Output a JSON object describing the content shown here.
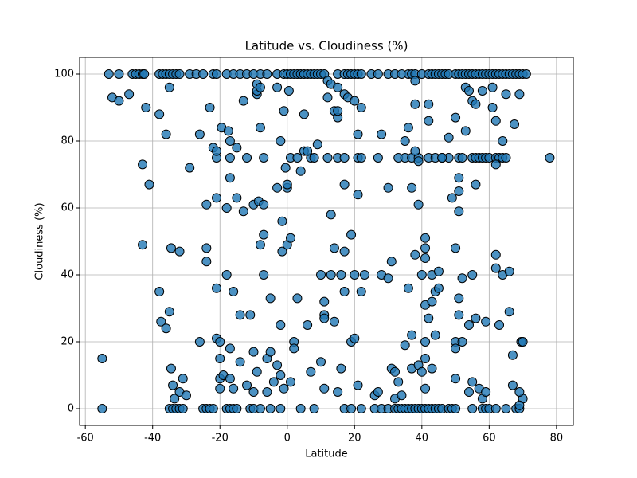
{
  "chart_data": {
    "type": "scatter",
    "title": "Latitude vs. Cloudiness (%)",
    "x_label": "Latitude",
    "y_label": "Cloudiness (%)",
    "color": "#1f77b4",
    "edge_color": "#000000",
    "grid": true,
    "xlim": [
      -61.7,
      85
    ],
    "ylim": [
      -5,
      105
    ],
    "xticks": [
      -60,
      -40,
      -20,
      0,
      20,
      40,
      60,
      80
    ],
    "yticks": [
      0,
      20,
      40,
      60,
      80,
      100
    ],
    "x": [
      -53,
      -50,
      -46,
      -45,
      -44,
      -43,
      -42.5,
      -38,
      -37,
      -36,
      -35,
      -34,
      -33,
      -32,
      -29,
      -27,
      -25,
      -22,
      -21,
      -18,
      -16,
      -14,
      -12,
      -10,
      -8,
      -6,
      -3,
      -1,
      0,
      1,
      2,
      3,
      4,
      5,
      6,
      7,
      8,
      9,
      10,
      11,
      15,
      17,
      18,
      19,
      20,
      21,
      22,
      25,
      27,
      30,
      32,
      34,
      36,
      37,
      38,
      40,
      42,
      43,
      44,
      45,
      46,
      47,
      48,
      50,
      51,
      52,
      53,
      54,
      55,
      56,
      57,
      58,
      59,
      60,
      61,
      62,
      63,
      64,
      65,
      66,
      67,
      68,
      69,
      70,
      71,
      -55,
      -35,
      -34,
      -33,
      -32,
      -31,
      -25,
      -24,
      -23,
      -22,
      -18,
      -17,
      -16,
      -15,
      -11,
      -10,
      -8,
      -5,
      -2,
      4,
      8,
      17,
      19,
      22,
      26,
      28,
      30,
      32,
      33,
      34,
      35,
      36,
      37,
      38,
      39,
      40,
      41,
      42,
      43,
      44,
      45,
      46,
      48,
      49,
      50,
      55,
      58,
      59,
      60,
      62,
      65,
      68,
      69,
      -21,
      -17,
      -12,
      -7,
      1,
      3,
      7,
      12,
      15,
      17,
      21,
      22,
      27,
      33,
      35,
      37,
      39,
      42,
      44,
      46,
      48,
      51,
      52,
      55,
      56,
      57,
      58,
      59,
      60,
      62,
      63,
      64,
      65,
      78,
      -55,
      -52,
      -50,
      -47,
      -43,
      -43,
      -42,
      -41,
      -38,
      -38,
      -37.5,
      -36,
      -36,
      -35,
      -35,
      -34.5,
      -34.5,
      -34,
      -33.5,
      -32,
      -32,
      -31,
      -30,
      -29,
      -26,
      -26,
      -24,
      -24,
      -24,
      -23,
      -22,
      -21,
      -21,
      -21,
      -21,
      -20,
      -20,
      -20,
      -20,
      -19.5,
      -19,
      -18,
      -18,
      -17.5,
      -17,
      -17,
      -17,
      -17,
      -16,
      -16,
      -15,
      -15,
      -14,
      -14,
      -13,
      -13,
      -12,
      -11,
      -10,
      -10,
      -10,
      -9,
      -9,
      -9,
      -9,
      -8.5,
      -8,
      -8,
      -8,
      -7,
      -7,
      -7,
      -6,
      -6,
      -5,
      -5,
      -4,
      -3,
      -3,
      -3,
      -2,
      -2,
      -2,
      -1.5,
      -1.5,
      -1,
      -1,
      -0.5,
      0,
      0,
      0,
      0.5,
      1,
      1,
      2,
      2,
      3,
      4,
      5,
      5,
      6,
      6,
      7,
      8,
      9,
      10,
      10,
      11,
      11,
      11,
      11,
      12,
      12,
      13,
      13,
      13,
      14,
      14,
      14,
      15,
      15,
      15,
      15,
      16,
      16,
      17,
      17,
      17,
      17,
      18,
      19,
      19,
      20,
      20,
      20,
      21,
      21,
      21,
      22,
      22,
      23,
      26,
      27,
      28,
      28,
      30,
      30,
      31,
      31,
      32,
      32,
      33,
      34,
      35,
      35,
      36,
      36,
      37,
      37,
      37,
      38,
      38,
      38,
      38,
      39,
      39,
      39,
      40,
      40,
      41,
      41,
      41,
      41,
      41,
      41,
      41,
      42,
      42,
      42,
      43,
      43,
      43,
      44,
      44,
      45,
      45,
      46,
      48,
      49,
      50,
      50,
      50,
      50,
      50,
      51,
      51,
      51,
      51,
      51,
      52,
      52,
      53,
      53,
      54,
      54,
      54,
      55,
      55,
      55,
      56,
      56,
      56,
      57,
      58,
      58,
      59,
      59,
      61,
      61,
      62,
      62,
      62,
      62,
      63,
      64,
      64,
      65,
      66,
      66,
      67,
      67,
      67.5,
      69,
      69.5,
      70,
      70,
      69,
      69
    ],
    "values": [
      100,
      100,
      100,
      100,
      100,
      100,
      100,
      100,
      100,
      100,
      100,
      100,
      100,
      100,
      100,
      100,
      100,
      100,
      100,
      100,
      100,
      100,
      100,
      100,
      100,
      100,
      100,
      100,
      100,
      100,
      100,
      100,
      100,
      100,
      100,
      100,
      100,
      100,
      100,
      100,
      100,
      100,
      100,
      100,
      100,
      100,
      100,
      100,
      100,
      100,
      100,
      100,
      100,
      100,
      100,
      100,
      100,
      100,
      100,
      100,
      100,
      100,
      100,
      100,
      100,
      100,
      100,
      100,
      100,
      100,
      100,
      100,
      100,
      100,
      100,
      100,
      100,
      100,
      100,
      100,
      100,
      100,
      100,
      100,
      100,
      0,
      0,
      0,
      0,
      0,
      0,
      0,
      0,
      0,
      0,
      0,
      0,
      0,
      0,
      0,
      0,
      0,
      0,
      0,
      0,
      0,
      0,
      0,
      0,
      0,
      0,
      0,
      0,
      0,
      0,
      0,
      0,
      0,
      0,
      0,
      0,
      0,
      0,
      0,
      0,
      0,
      0,
      0,
      0,
      0,
      0,
      0,
      0,
      0,
      0,
      0,
      0,
      0,
      75,
      75,
      75,
      75,
      75,
      75,
      75,
      75,
      75,
      75,
      75,
      75,
      75,
      75,
      75,
      75,
      75,
      75,
      75,
      75,
      75,
      75,
      75,
      75,
      75,
      75,
      75,
      75,
      75,
      75,
      75,
      75,
      75,
      75,
      15,
      93,
      92,
      94,
      73,
      49,
      90,
      67,
      88,
      35,
      26,
      24,
      82,
      29,
      96,
      48,
      12,
      7,
      3,
      47,
      5,
      9,
      4,
      72,
      82,
      20,
      61,
      44,
      48,
      90,
      78,
      77,
      63,
      36,
      21,
      20,
      15,
      9,
      6,
      84,
      10,
      60,
      40,
      83,
      80,
      69,
      18,
      9,
      6,
      35,
      78,
      63,
      28,
      14,
      92,
      59,
      7,
      28,
      61,
      17,
      5,
      11,
      94,
      95,
      97,
      62,
      49,
      84,
      96,
      52,
      40,
      61,
      15,
      5,
      17,
      33,
      8,
      96,
      66,
      13,
      80,
      25,
      10,
      56,
      47,
      6,
      89,
      72,
      66,
      67,
      49,
      95,
      51,
      8,
      20,
      18,
      33,
      71,
      77,
      88,
      25,
      77,
      11,
      75,
      79,
      40,
      14,
      32,
      28,
      27,
      6,
      98,
      93,
      40,
      58,
      97,
      89,
      48,
      26,
      96,
      87,
      89,
      5,
      40,
      12,
      67,
      35,
      47,
      94,
      93,
      52,
      20,
      92,
      21,
      40,
      82,
      64,
      7,
      35,
      90,
      40,
      4,
      5,
      82,
      40,
      39,
      66,
      12,
      44,
      11,
      3,
      8,
      4,
      80,
      19,
      36,
      84,
      12,
      22,
      66,
      46,
      98,
      91,
      77,
      61,
      74,
      13,
      11,
      40,
      45,
      51,
      48,
      31,
      20,
      15,
      6,
      91,
      86,
      27,
      12,
      32,
      40,
      35,
      22,
      41,
      36,
      75,
      81,
      63,
      87,
      48,
      20,
      18,
      9,
      33,
      28,
      59,
      65,
      69,
      39,
      20,
      96,
      83,
      95,
      25,
      5,
      40,
      92,
      8,
      91,
      67,
      27,
      6,
      95,
      3,
      5,
      26,
      96,
      90,
      86,
      73,
      46,
      42,
      25,
      40,
      80,
      94,
      41,
      29,
      16,
      7,
      85,
      94,
      20,
      20,
      3,
      5,
      1
    ]
  }
}
